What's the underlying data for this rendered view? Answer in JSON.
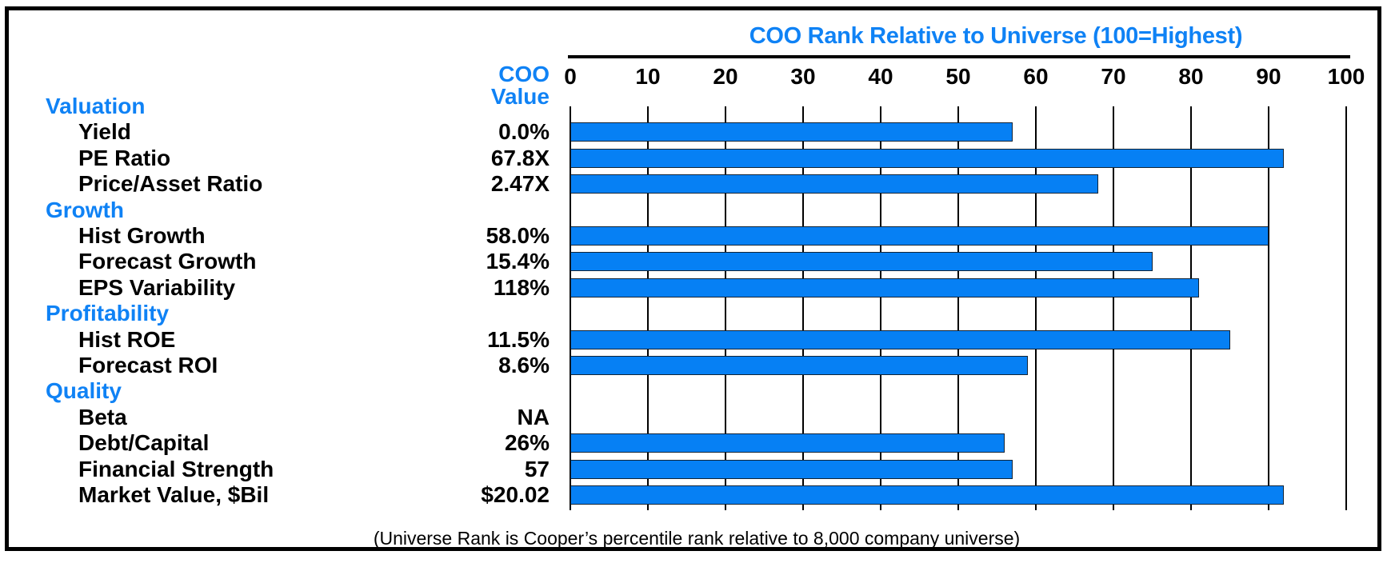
{
  "figure": {
    "title": "COO Rank Relative to Universe (100=Highest)",
    "value_header": {
      "line1": "COO",
      "line2": "Value"
    },
    "footnote": "(Universe Rank is Cooper’s percentile rank relative to 8,000 company universe)",
    "colors": {
      "accent_blue": "#0f82f5",
      "bar_blue": "#0680f4",
      "text_black": "#000000",
      "background": "#ffffff"
    }
  },
  "chart_data": {
    "type": "bar",
    "orientation": "horizontal",
    "title": "COO Rank Relative to Universe (100=Highest)",
    "x_axis_label": "COO Rank Relative to Universe (100=Highest)",
    "xlim": [
      0,
      100
    ],
    "x_ticks": [
      0,
      10,
      20,
      30,
      40,
      50,
      60,
      70,
      80,
      90,
      100
    ],
    "grid": true,
    "value_column_header": "COO Value",
    "groups": [
      {
        "heading": "Valuation",
        "rows": [
          {
            "label": "Yield",
            "coo_value": "0.0%",
            "rank": 57
          },
          {
            "label": "PE Ratio",
            "coo_value": "67.8X",
            "rank": 92
          },
          {
            "label": "Price/Asset Ratio",
            "coo_value": "2.47X",
            "rank": 68
          }
        ]
      },
      {
        "heading": "Growth",
        "rows": [
          {
            "label": "Hist Growth",
            "coo_value": "58.0%",
            "rank": 90
          },
          {
            "label": "Forecast Growth",
            "coo_value": "15.4%",
            "rank": 75
          },
          {
            "label": "EPS Variability",
            "coo_value": "118%",
            "rank": 81
          }
        ]
      },
      {
        "heading": "Profitability",
        "rows": [
          {
            "label": "Hist ROE",
            "coo_value": "11.5%",
            "rank": 85
          },
          {
            "label": "Forecast ROI",
            "coo_value": "8.6%",
            "rank": 59
          }
        ]
      },
      {
        "heading": "Quality",
        "rows": [
          {
            "label": "Beta",
            "coo_value": "NA",
            "rank": null
          },
          {
            "label": "Debt/Capital",
            "coo_value": "26%",
            "rank": 56
          },
          {
            "label": "Financial Strength",
            "coo_value": "57",
            "rank": 57
          },
          {
            "label": "Market Value, $Bil",
            "coo_value": "$20.02",
            "rank": 92
          }
        ]
      }
    ]
  }
}
